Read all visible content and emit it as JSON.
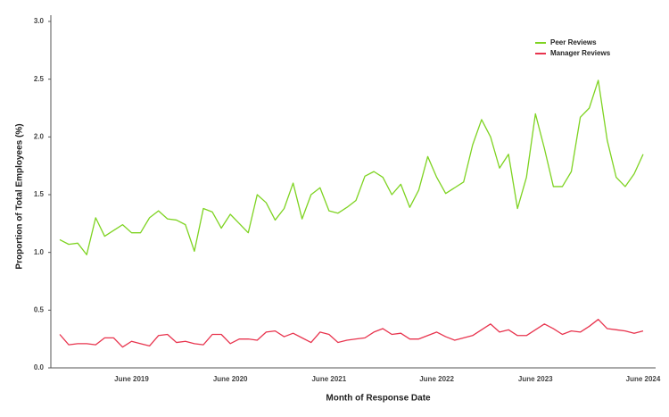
{
  "chart_data": {
    "type": "line",
    "xlabel": "Month of Response Date",
    "ylabel": "Proportion of Total Employees (%)",
    "categories": [
      null,
      null,
      null,
      null,
      null,
      null,
      null,
      null,
      "June 2019",
      null,
      null,
      null,
      null,
      null,
      null,
      null,
      null,
      null,
      null,
      "June 2020",
      null,
      null,
      null,
      null,
      null,
      null,
      null,
      null,
      null,
      null,
      "June 2021",
      null,
      null,
      null,
      null,
      null,
      null,
      null,
      null,
      null,
      null,
      null,
      "June 2022",
      null,
      null,
      null,
      null,
      null,
      null,
      null,
      null,
      null,
      null,
      "June 2023",
      null,
      null,
      null,
      null,
      null,
      null,
      null,
      null,
      null,
      null,
      null,
      "June 2024"
    ],
    "series": [
      {
        "name": "Peer Reviews",
        "color": "#7ed321",
        "values": [
          1.11,
          1.07,
          1.08,
          0.98,
          1.3,
          1.14,
          1.19,
          1.24,
          1.17,
          1.17,
          1.3,
          1.36,
          1.29,
          1.28,
          1.24,
          1.01,
          1.38,
          1.35,
          1.21,
          1.33,
          1.25,
          1.17,
          1.5,
          1.43,
          1.28,
          1.38,
          1.6,
          1.29,
          1.5,
          1.56,
          1.36,
          1.34,
          1.39,
          1.45,
          1.66,
          1.7,
          1.65,
          1.5,
          1.59,
          1.39,
          1.54,
          1.83,
          1.65,
          1.51,
          1.56,
          1.61,
          1.93,
          2.15,
          2.0,
          1.73,
          1.85,
          1.38,
          1.65,
          2.2,
          1.9,
          1.57,
          1.57,
          1.7,
          2.17,
          2.25,
          2.49,
          1.97,
          1.65,
          1.57,
          1.68,
          1.85
        ]
      },
      {
        "name": "Manager Reviews",
        "color": "#e8344e",
        "values": [
          0.29,
          0.2,
          0.21,
          0.21,
          0.2,
          0.26,
          0.26,
          0.18,
          0.23,
          0.21,
          0.19,
          0.28,
          0.29,
          0.22,
          0.23,
          0.21,
          0.2,
          0.29,
          0.29,
          0.21,
          0.25,
          0.25,
          0.24,
          0.31,
          0.32,
          0.27,
          0.3,
          0.26,
          0.22,
          0.31,
          0.29,
          0.22,
          0.24,
          0.25,
          0.26,
          0.31,
          0.34,
          0.29,
          0.3,
          0.25,
          0.25,
          0.28,
          0.31,
          0.27,
          0.24,
          0.26,
          0.28,
          0.33,
          0.38,
          0.31,
          0.33,
          0.28,
          0.28,
          0.33,
          0.38,
          0.34,
          0.29,
          0.32,
          0.31,
          0.36,
          0.42,
          0.34,
          0.33,
          0.32,
          0.3,
          0.32
        ]
      }
    ],
    "ylim": [
      0,
      3
    ],
    "yticks": [
      {
        "value": 0,
        "label": "0.0"
      },
      0.5,
      {
        "value": 1,
        "label": "1.0"
      },
      1.5,
      {
        "value": 2,
        "label": "2.0"
      },
      2.5,
      {
        "value": 3,
        "label": "3.0"
      }
    ],
    "grid": false,
    "legend": "upper right"
  }
}
